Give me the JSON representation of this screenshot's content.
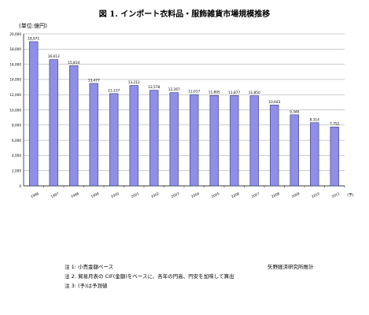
{
  "chart_data": {
    "type": "bar",
    "title": "図 1. インポート衣料品・服飾雑貨市場規模推移",
    "unit_label": "(単位:億円)",
    "categories": [
      "1996",
      "1997",
      "1998",
      "1999",
      "2000",
      "2001",
      "2002",
      "2003",
      "2004",
      "2005",
      "2006",
      "2007",
      "2008",
      "2009",
      "2010",
      "2011"
    ],
    "values": [
      18971,
      16613,
      15814,
      13477,
      12137,
      13212,
      12578,
      12267,
      12017,
      11895,
      11877,
      11850,
      10643,
      9346,
      8314,
      7752
    ],
    "value_labels": [
      "18,971",
      "16,613",
      "15,814",
      "13,477",
      "12,137",
      "13,212",
      "12,578",
      "12,267",
      "12,017",
      "11,895",
      "11,877",
      "11,850",
      "10,643",
      "9,346",
      "8,314",
      "7,752"
    ],
    "forecast_marker": "(予)",
    "ylim": [
      0,
      20000
    ],
    "yticks": [
      "0",
      "2,000",
      "4,000",
      "6,000",
      "8,000",
      "10,000",
      "12,000",
      "14,000",
      "16,000",
      "18,000",
      "20,000"
    ],
    "grid": true,
    "bar_color": "#8f8fe8",
    "bar_edge_color": "#33337a"
  },
  "notes": [
    "注 1: 小売金額ベース",
    "注 2: 貿易月表の CIF(金額)をベースに、各年の円高、円安を加味して算出",
    "注 3: (予)は予測値"
  ],
  "source_credit": "矢野経済研究所推計"
}
